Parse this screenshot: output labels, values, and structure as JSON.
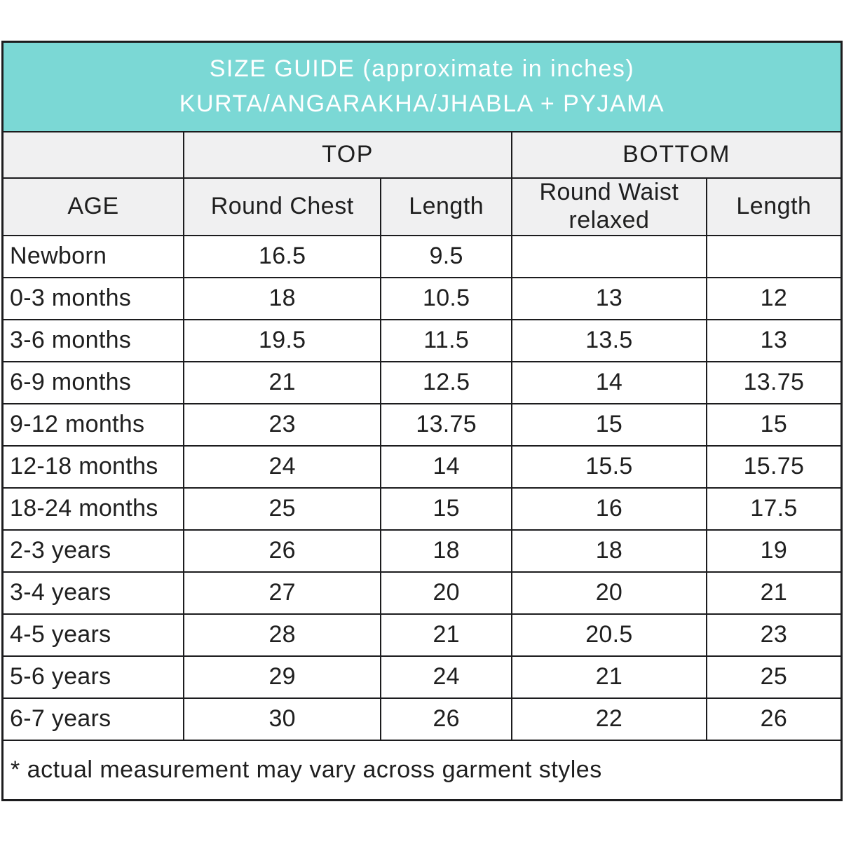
{
  "title": {
    "line1": "SIZE GUIDE (approximate in inches)",
    "line2": "KURTA/ANGARAKHA/JHABLA + PYJAMA"
  },
  "header": {
    "top_group": "TOP",
    "bottom_group": "BOTTOM",
    "age": "AGE",
    "round_chest": "Round Chest",
    "top_length": "Length",
    "round_waist": "Round Waist relaxed",
    "bottom_length": "Length"
  },
  "rows": [
    {
      "cells": [
        "Newborn",
        "16.5",
        "9.5",
        "",
        ""
      ]
    },
    {
      "cells": [
        "0-3 months",
        "18",
        "10.5",
        "13",
        "12"
      ]
    },
    {
      "cells": [
        "3-6 months",
        "19.5",
        "11.5",
        "13.5",
        "13"
      ]
    },
    {
      "cells": [
        "6-9 months",
        "21",
        "12.5",
        "14",
        "13.75"
      ]
    },
    {
      "cells": [
        "9-12 months",
        "23",
        "13.75",
        "15",
        "15"
      ]
    },
    {
      "cells": [
        "12-18 months",
        "24",
        "14",
        "15.5",
        "15.75"
      ]
    },
    {
      "cells": [
        "18-24 months",
        "25",
        "15",
        "16",
        "17.5"
      ]
    },
    {
      "cells": [
        "2-3 years",
        "26",
        "18",
        "18",
        "19"
      ]
    },
    {
      "cells": [
        "3-4 years",
        "27",
        "20",
        "20",
        "21"
      ]
    },
    {
      "cells": [
        "4-5 years",
        "28",
        "21",
        "20.5",
        "23"
      ]
    },
    {
      "cells": [
        "5-6 years",
        "29",
        "24",
        "21",
        "25"
      ]
    },
    {
      "cells": [
        "6-7 years",
        "30",
        "26",
        "22",
        "26"
      ]
    }
  ],
  "footnote": "* actual measurement may vary across garment styles",
  "colors": {
    "title_band": "#7bd8d5",
    "title_text": "#ffffff",
    "header_gray": "#f0f0f1",
    "border": "#1c1c1e",
    "text": "#1f1f1f"
  },
  "chart_data": {
    "type": "table",
    "title": "SIZE GUIDE (approximate in inches) KURTA/ANGARAKHA/JHABLA + PYJAMA",
    "column_groups": [
      "",
      "TOP",
      "TOP",
      "BOTTOM",
      "BOTTOM"
    ],
    "columns": [
      "AGE",
      "Round Chest",
      "Length",
      "Round Waist relaxed",
      "Length"
    ],
    "rows": [
      [
        "Newborn",
        16.5,
        9.5,
        null,
        null
      ],
      [
        "0-3 months",
        18,
        10.5,
        13,
        12
      ],
      [
        "3-6 months",
        19.5,
        11.5,
        13.5,
        13
      ],
      [
        "6-9 months",
        21,
        12.5,
        14,
        13.75
      ],
      [
        "9-12 months",
        23,
        13.75,
        15,
        15
      ],
      [
        "12-18 months",
        24,
        14,
        15.5,
        15.75
      ],
      [
        "18-24 months",
        25,
        15,
        16,
        17.5
      ],
      [
        "2-3 years",
        26,
        18,
        18,
        19
      ],
      [
        "3-4 years",
        27,
        20,
        20,
        21
      ],
      [
        "4-5 years",
        28,
        21,
        20.5,
        23
      ],
      [
        "5-6 years",
        29,
        24,
        21,
        25
      ],
      [
        "6-7 years",
        30,
        26,
        22,
        26
      ]
    ],
    "footnote": "* actual measurement may vary across garment styles",
    "units": "inches"
  }
}
